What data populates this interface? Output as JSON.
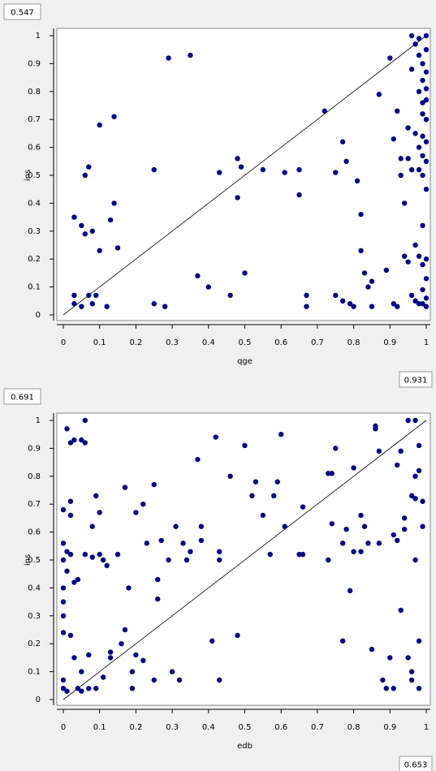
{
  "chart_data": [
    {
      "type": "scatter",
      "top_label": "0.547",
      "bottom_label": "0.931",
      "x_label": "qge",
      "y_label": "ins",
      "color": "#000080",
      "identity_line": true,
      "xlim": [
        0,
        1
      ],
      "ylim": [
        0,
        1
      ],
      "xticks": [
        0,
        0.1,
        0.2,
        0.3,
        0.4,
        0.5,
        0.6,
        0.7,
        0.8,
        0.9,
        1
      ],
      "yticks": [
        0,
        0.1,
        0.2,
        0.3,
        0.4,
        0.5,
        0.6,
        0.7,
        0.8,
        0.9,
        1
      ],
      "x": [
        0.03,
        0.03,
        0.03,
        0.05,
        0.05,
        0.06,
        0.06,
        0.07,
        0.07,
        0.08,
        0.08,
        0.09,
        0.1,
        0.1,
        0.12,
        0.13,
        0.14,
        0.14,
        0.15,
        0.25,
        0.25,
        0.28,
        0.29,
        0.35,
        0.37,
        0.4,
        0.43,
        0.46,
        0.48,
        0.48,
        0.49,
        0.5,
        0.55,
        0.61,
        0.65,
        0.65,
        0.67,
        0.67,
        0.72,
        0.75,
        0.75,
        0.77,
        0.77,
        0.78,
        0.79,
        0.8,
        0.81,
        0.82,
        0.82,
        0.83,
        0.84,
        0.85,
        0.85,
        0.87,
        0.89,
        0.9,
        0.91,
        0.91,
        0.92,
        0.92,
        0.93,
        0.93,
        0.94,
        0.94,
        0.95,
        0.95,
        0.95,
        0.96,
        0.96,
        0.96,
        0.96,
        0.97,
        0.97,
        0.97,
        0.97,
        0.98,
        0.98,
        0.98,
        0.98,
        0.98,
        0.98,
        0.98,
        0.99,
        0.99,
        0.99,
        0.99,
        0.99,
        0.99,
        0.99,
        0.99,
        0.99,
        0.99,
        0.99,
        1.0,
        1.0,
        1.0,
        1.0,
        1.0,
        1.0,
        1.0,
        1.0,
        1.0,
        1.0,
        1.0,
        1.0,
        1.0
      ],
      "values": [
        0.07,
        0.04,
        0.35,
        0.32,
        0.03,
        0.5,
        0.29,
        0.53,
        0.07,
        0.3,
        0.04,
        0.07,
        0.68,
        0.23,
        0.03,
        0.34,
        0.71,
        0.4,
        0.24,
        0.52,
        0.04,
        0.03,
        0.92,
        0.93,
        0.14,
        0.1,
        0.51,
        0.07,
        0.56,
        0.42,
        0.53,
        0.15,
        0.52,
        0.51,
        0.52,
        0.43,
        0.07,
        0.03,
        0.73,
        0.51,
        0.07,
        0.62,
        0.05,
        0.55,
        0.04,
        0.03,
        0.48,
        0.36,
        0.23,
        0.15,
        0.1,
        0.03,
        0.12,
        0.79,
        0.16,
        0.92,
        0.04,
        0.63,
        0.73,
        0.03,
        0.56,
        0.5,
        0.4,
        0.21,
        0.67,
        0.56,
        0.19,
        1.0,
        0.88,
        0.52,
        0.07,
        0.97,
        0.25,
        0.65,
        0.05,
        0.99,
        0.93,
        0.8,
        0.6,
        0.52,
        0.21,
        0.04,
        0.9,
        0.84,
        0.76,
        0.72,
        0.64,
        0.57,
        0.5,
        0.32,
        0.18,
        0.09,
        0.04,
        1.0,
        0.95,
        0.87,
        0.81,
        0.77,
        0.7,
        0.62,
        0.55,
        0.45,
        0.2,
        0.13,
        0.06,
        0.03
      ]
    },
    {
      "type": "scatter",
      "top_label": "0.691",
      "bottom_label": "0.653",
      "x_label": "edb",
      "y_label": "ins",
      "color": "#000080",
      "identity_line": true,
      "xlim": [
        0,
        1
      ],
      "ylim": [
        0,
        1
      ],
      "xticks": [
        0,
        0.1,
        0.2,
        0.3,
        0.4,
        0.5,
        0.6,
        0.7,
        0.8,
        0.9,
        1
      ],
      "yticks": [
        0,
        0.1,
        0.2,
        0.3,
        0.4,
        0.5,
        0.6,
        0.7,
        0.8,
        0.9,
        1
      ],
      "x": [
        0.0,
        0.0,
        0.0,
        0.0,
        0.0,
        0.0,
        0.0,
        0.0,
        0.0,
        0.01,
        0.01,
        0.01,
        0.01,
        0.02,
        0.02,
        0.02,
        0.02,
        0.02,
        0.03,
        0.03,
        0.03,
        0.04,
        0.04,
        0.05,
        0.05,
        0.05,
        0.06,
        0.06,
        0.06,
        0.07,
        0.07,
        0.08,
        0.08,
        0.09,
        0.09,
        0.1,
        0.1,
        0.11,
        0.11,
        0.12,
        0.13,
        0.13,
        0.15,
        0.16,
        0.17,
        0.17,
        0.18,
        0.19,
        0.19,
        0.2,
        0.2,
        0.22,
        0.22,
        0.23,
        0.25,
        0.25,
        0.26,
        0.26,
        0.27,
        0.29,
        0.3,
        0.31,
        0.32,
        0.33,
        0.34,
        0.35,
        0.37,
        0.38,
        0.38,
        0.41,
        0.42,
        0.43,
        0.43,
        0.43,
        0.46,
        0.48,
        0.5,
        0.52,
        0.53,
        0.55,
        0.57,
        0.58,
        0.59,
        0.6,
        0.61,
        0.65,
        0.66,
        0.66,
        0.73,
        0.74,
        0.75,
        0.73,
        0.74,
        0.77,
        0.77,
        0.78,
        0.79,
        0.8,
        0.8,
        0.82,
        0.82,
        0.83,
        0.84,
        0.85,
        0.86,
        0.86,
        0.87,
        0.87,
        0.88,
        0.89,
        0.9,
        0.91,
        0.91,
        0.92,
        0.92,
        0.93,
        0.93,
        0.94,
        0.94,
        0.95,
        0.95,
        0.96,
        0.96,
        0.96,
        0.97,
        0.97,
        0.97,
        0.97,
        0.98,
        0.98,
        0.98,
        0.99,
        0.99,
        0.98
      ],
      "values": [
        0.68,
        0.56,
        0.5,
        0.4,
        0.35,
        0.3,
        0.24,
        0.07,
        0.04,
        0.97,
        0.53,
        0.46,
        0.03,
        0.92,
        0.71,
        0.66,
        0.52,
        0.23,
        0.93,
        0.42,
        0.15,
        0.43,
        0.04,
        0.93,
        0.1,
        0.03,
        1.0,
        0.92,
        0.52,
        0.16,
        0.04,
        0.51,
        0.62,
        0.73,
        0.04,
        0.52,
        0.67,
        0.08,
        0.5,
        0.48,
        0.17,
        0.15,
        0.52,
        0.2,
        0.76,
        0.25,
        0.4,
        0.1,
        0.04,
        0.16,
        0.67,
        0.7,
        0.14,
        0.56,
        0.77,
        0.07,
        0.43,
        0.36,
        0.57,
        0.5,
        0.1,
        0.62,
        0.07,
        0.56,
        0.5,
        0.53,
        0.86,
        0.62,
        0.57,
        0.21,
        0.94,
        0.53,
        0.07,
        0.5,
        0.8,
        0.23,
        0.91,
        0.73,
        0.78,
        0.66,
        0.52,
        0.73,
        0.78,
        0.95,
        0.62,
        0.52,
        0.52,
        0.69,
        0.81,
        0.81,
        0.9,
        0.5,
        0.63,
        0.56,
        0.21,
        0.61,
        0.39,
        0.83,
        0.53,
        0.66,
        0.53,
        0.62,
        0.56,
        0.18,
        0.97,
        0.98,
        0.56,
        0.89,
        0.07,
        0.04,
        0.15,
        0.59,
        0.04,
        0.84,
        0.57,
        0.89,
        0.32,
        0.65,
        0.61,
        1.0,
        0.15,
        0.1,
        0.73,
        0.07,
        1.0,
        0.8,
        0.72,
        0.5,
        0.82,
        0.21,
        0.04,
        0.71,
        0.62,
        0.91
      ]
    }
  ]
}
